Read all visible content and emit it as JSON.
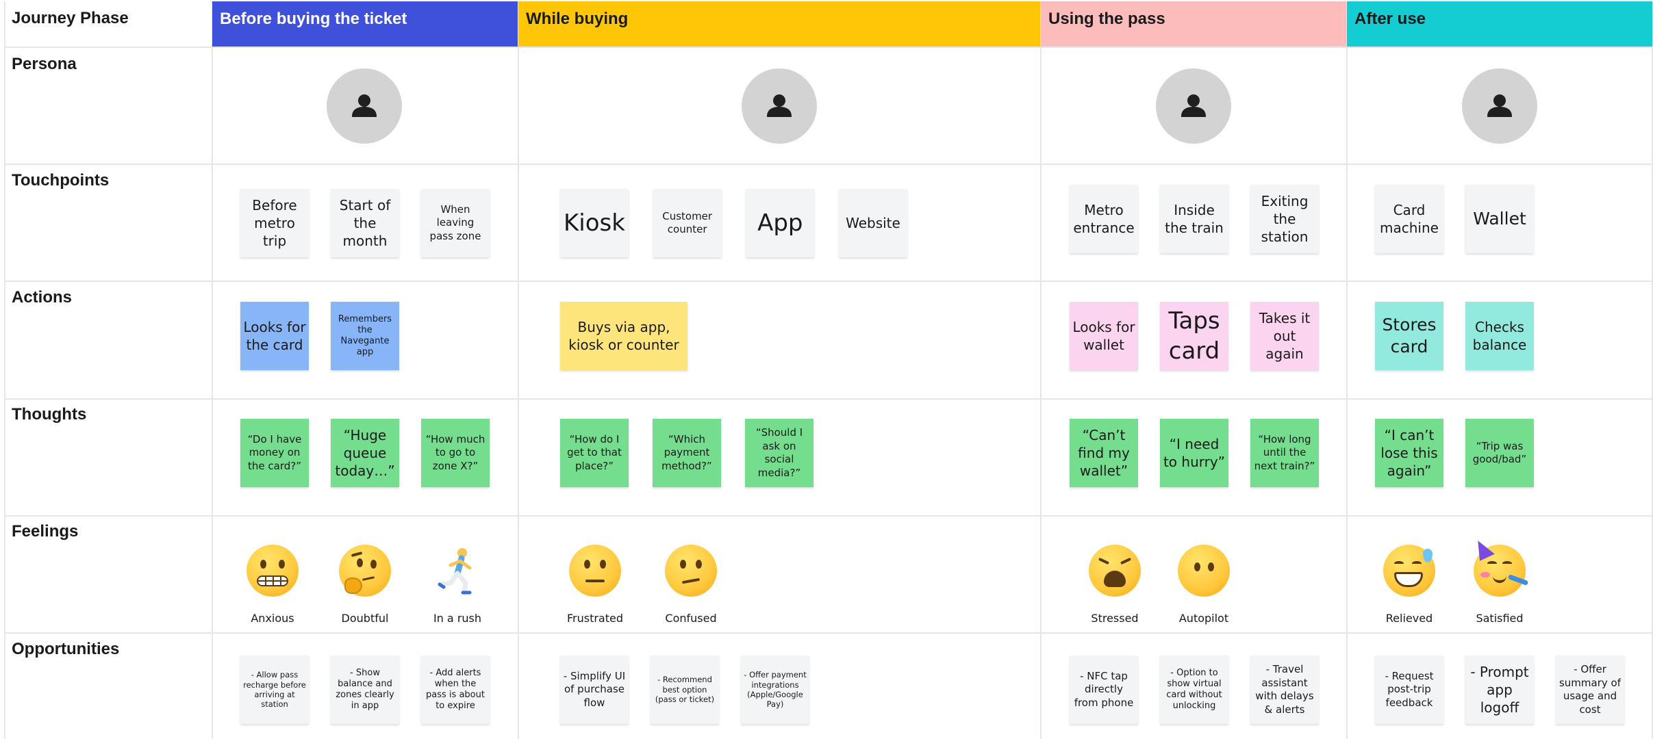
{
  "header": {
    "row_label": "Journey Phase"
  },
  "phases": [
    {
      "id": "before",
      "label": "Before buying the ticket",
      "color": "#3f51db",
      "text_color": "#ffffff"
    },
    {
      "id": "while",
      "label": "While buying",
      "color": "#ffc607",
      "text_color": "#1a1a1a"
    },
    {
      "id": "using",
      "label": "Using the pass",
      "color": "#fdbcbc",
      "text_color": "#1a1a1a"
    },
    {
      "id": "after",
      "label": "After use",
      "color": "#14cdd2",
      "text_color": "#1a1a1a"
    }
  ],
  "rows": {
    "persona": {
      "label": "Persona",
      "icon": "person-icon"
    },
    "touchpoints": {
      "label": "Touchpoints",
      "color": "#f3f4f6",
      "cells": [
        [
          "Before metro trip",
          "Start of the month",
          "When leaving pass zone"
        ],
        [
          "Kiosk",
          "Customer counter",
          "App",
          "Website"
        ],
        [
          "Metro entrance",
          "Inside the train",
          "Exiting the station"
        ],
        [
          "Card machine",
          "Wallet"
        ]
      ]
    },
    "actions": {
      "label": "Actions",
      "cells": [
        {
          "color": "#87b5f8",
          "notes": [
            "Looks for the card",
            "Remembers the Navegante app"
          ]
        },
        {
          "color": "#fde57b",
          "notes": [
            "Buys via app, kiosk or counter"
          ]
        },
        {
          "color": "#fbd5f0",
          "notes": [
            "Looks for wallet",
            "Taps card",
            "Takes it out again"
          ]
        },
        {
          "color": "#92e9de",
          "notes": [
            "Stores card",
            "Checks balance"
          ]
        }
      ]
    },
    "thoughts": {
      "label": "Thoughts",
      "color": "#74de8e",
      "cells": [
        [
          "“Do I have money on the card?”",
          "“Huge queue today…”",
          "“How much to go to zone X?”"
        ],
        [
          "“How do I get to that place?”",
          "“Which payment method?”",
          "“Should I ask on social media?”"
        ],
        [
          "“Can’t find my wallet”",
          "“I need to hurry”",
          "“How long until the next train?”"
        ],
        [
          "“I can’t lose this again”",
          "“Trip was good/bad”"
        ]
      ]
    },
    "feelings": {
      "label": "Feelings",
      "cells": [
        [
          {
            "label": "Anxious",
            "icon": "grimacing-face-icon"
          },
          {
            "label": "Doubtful",
            "icon": "thinking-face-icon"
          },
          {
            "label": "In a rush",
            "icon": "running-person-icon"
          }
        ],
        [
          {
            "label": "Frustrated",
            "icon": "neutral-face-icon"
          },
          {
            "label": "Confused",
            "icon": "confused-face-icon"
          }
        ],
        [
          {
            "label": "Stressed",
            "icon": "weary-face-icon"
          },
          {
            "label": "Autopilot",
            "icon": "face-without-mouth-icon"
          }
        ],
        [
          {
            "label": "Relieved",
            "icon": "grinning-face-with-sweat-icon"
          },
          {
            "label": "Satisfied",
            "icon": "partying-face-icon"
          }
        ]
      ]
    },
    "opportunities": {
      "label": "Opportunities",
      "color": "#f3f4f6",
      "cells": [
        [
          "- Allow pass recharge before arriving at station",
          "- Show balance and zones clearly in app",
          "- Add alerts when the pass is about to expire"
        ],
        [
          "- Simplify UI of purchase flow",
          "- Recommend best option (pass or ticket)",
          "- Offer payment integrations (Apple/Google Pay)"
        ],
        [
          "- NFC tap directly from phone",
          "- Option to show virtual card without unlocking",
          "- Travel assistant with delays & alerts"
        ],
        [
          "- Request post-trip feedback",
          "- Prompt app logoff",
          "- Offer summary of usage and cost"
        ]
      ]
    }
  }
}
